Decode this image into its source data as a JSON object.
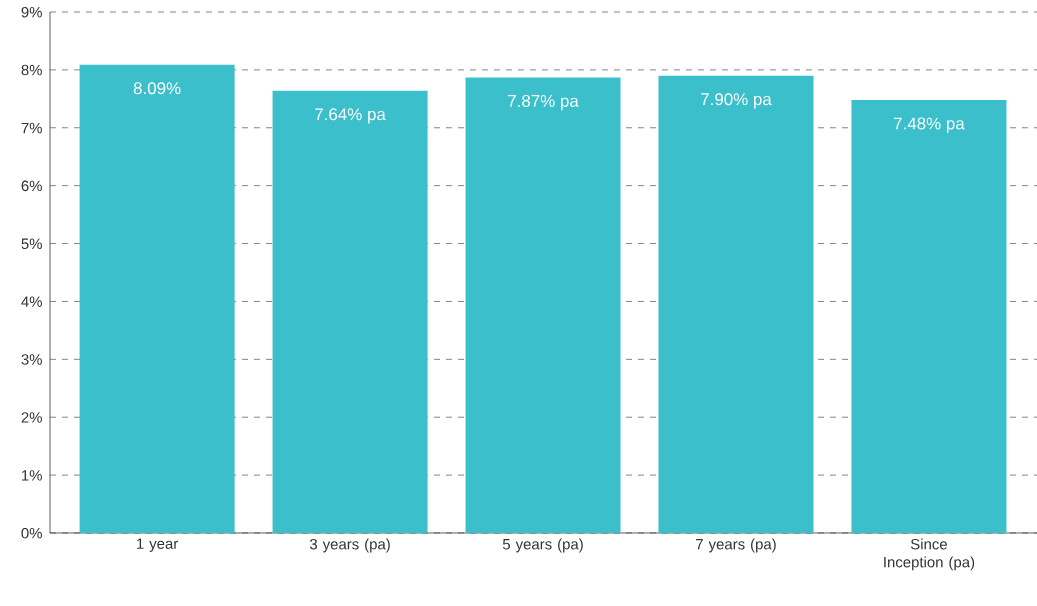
{
  "chart_data": {
    "type": "bar",
    "categories": [
      "1 year",
      "3 years (pa)",
      "5 years (pa)",
      "7 years (pa)",
      "Since Inception (pa)"
    ],
    "values": [
      8.09,
      7.64,
      7.87,
      7.9,
      7.48
    ],
    "value_labels": [
      "8.09%",
      "7.64% pa",
      "7.87% pa",
      "7.90% pa",
      "7.48% pa"
    ],
    "color": "#3bbfcb",
    "ylim": [
      0,
      9
    ],
    "yticks": [
      {
        "value": 0,
        "label": "0%"
      },
      {
        "value": 1,
        "label": "1%"
      },
      {
        "value": 2,
        "label": "2%"
      },
      {
        "value": 3,
        "label": "3%"
      },
      {
        "value": 4,
        "label": "4%"
      },
      {
        "value": 5,
        "label": "5%"
      },
      {
        "value": 6,
        "label": "6%"
      },
      {
        "value": 7,
        "label": "7%"
      },
      {
        "value": 8,
        "label": "8%"
      },
      {
        "value": 9,
        "label": "9%"
      }
    ],
    "grid": "y"
  }
}
